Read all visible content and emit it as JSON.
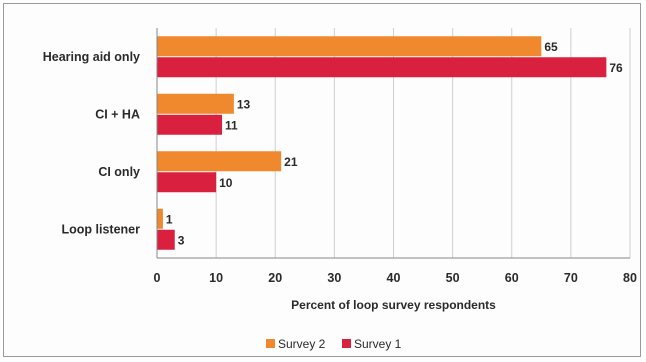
{
  "chart_data": {
    "type": "bar",
    "orientation": "horizontal",
    "categories": [
      "Hearing aid only",
      "CI + HA",
      "CI only",
      "Loop listener"
    ],
    "series": [
      {
        "name": "Survey 2",
        "values": [
          65,
          13,
          21,
          1
        ],
        "color": "#f0892e"
      },
      {
        "name": "Survey 1",
        "values": [
          76,
          11,
          10,
          3
        ],
        "color": "#d9203f"
      }
    ],
    "xlabel": "Percent of loop survey respondents",
    "xlim": [
      0,
      80
    ],
    "xticks": [
      0,
      10,
      20,
      30,
      40,
      50,
      60,
      70,
      80
    ],
    "grid": true,
    "legend_position": "bottom"
  }
}
